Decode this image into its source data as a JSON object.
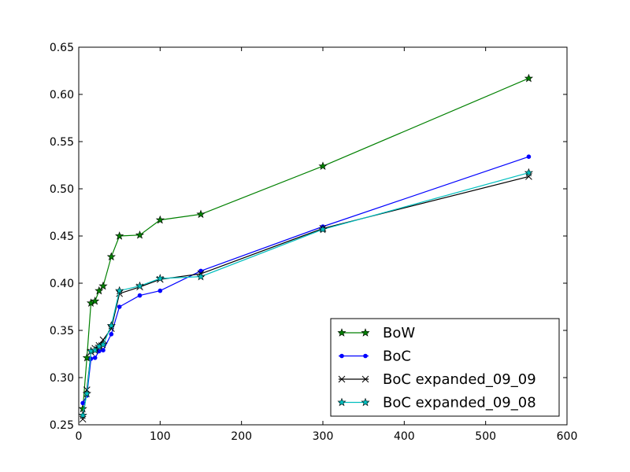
{
  "chart_data": {
    "type": "line",
    "title": "",
    "xlabel": "",
    "ylabel": "",
    "xlim": [
      0,
      600
    ],
    "ylim": [
      0.25,
      0.65
    ],
    "xticks": [
      0,
      100,
      200,
      300,
      400,
      500,
      600
    ],
    "yticks": [
      0.25,
      0.3,
      0.35,
      0.4,
      0.45,
      0.5,
      0.55,
      0.6,
      0.65
    ],
    "xtick_labels": [
      "0",
      "100",
      "200",
      "300",
      "400",
      "500",
      "600"
    ],
    "ytick_labels": [
      "0.25",
      "0.30",
      "0.35",
      "0.40",
      "0.45",
      "0.50",
      "0.55",
      "0.60",
      "0.65"
    ],
    "grid": false,
    "legend_position": "lower-right",
    "series": [
      {
        "name": "BoW",
        "color": "#008000",
        "marker": "star",
        "x": [
          5,
          10,
          15,
          20,
          25,
          30,
          40,
          50,
          75,
          100,
          150,
          300,
          553
        ],
        "y": [
          0.267,
          0.321,
          0.379,
          0.381,
          0.392,
          0.397,
          0.428,
          0.45,
          0.451,
          0.467,
          0.473,
          0.524,
          0.617
        ]
      },
      {
        "name": "BoC",
        "color": "#0000ff",
        "marker": "dot",
        "x": [
          5,
          10,
          15,
          20,
          25,
          30,
          40,
          50,
          75,
          100,
          150,
          300,
          553
        ],
        "y": [
          0.273,
          0.281,
          0.32,
          0.321,
          0.328,
          0.329,
          0.346,
          0.375,
          0.387,
          0.392,
          0.413,
          0.46,
          0.534
        ]
      },
      {
        "name": "BoC expanded_09_09",
        "color": "#000000",
        "marker": "x",
        "x": [
          5,
          10,
          15,
          20,
          25,
          30,
          40,
          50,
          75,
          100,
          150,
          300,
          553
        ],
        "y": [
          0.256,
          0.287,
          0.327,
          0.331,
          0.334,
          0.34,
          0.352,
          0.389,
          0.396,
          0.404,
          0.41,
          0.458,
          0.513
        ]
      },
      {
        "name": "BoC expanded_09_08",
        "color": "#00bfbf",
        "marker": "star",
        "x": [
          5,
          10,
          15,
          20,
          25,
          30,
          40,
          50,
          75,
          100,
          150,
          300,
          553
        ],
        "y": [
          0.26,
          0.283,
          0.328,
          0.329,
          0.333,
          0.335,
          0.355,
          0.392,
          0.397,
          0.405,
          0.407,
          0.457,
          0.517
        ]
      }
    ]
  }
}
